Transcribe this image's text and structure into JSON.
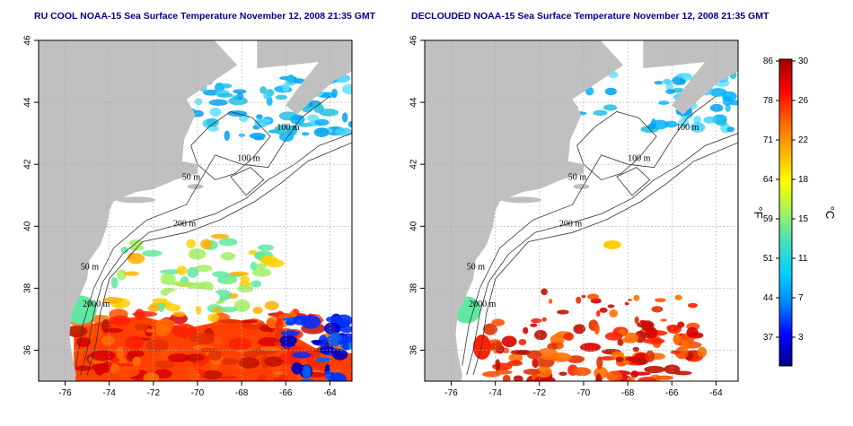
{
  "panels": [
    {
      "title": "RU COOL NOAA-15 Sea Surface Temperature November 12, 2008 21:35 GMT",
      "contour_labels": [
        "100 m",
        "50 m",
        "200 m",
        "50 m",
        "2000 m",
        "100 m"
      ]
    },
    {
      "title": "DECLOUDED NOAA-15 Sea Surface Temperature November 12, 2008 21:35 GMT",
      "contour_labels": [
        "100 m",
        "50 m",
        "100 m",
        "200 m",
        "50 m",
        "2000 m"
      ]
    }
  ],
  "map": {
    "lon_ticks": [
      "-76",
      "-74",
      "-72",
      "-70",
      "-68",
      "-66",
      "-64"
    ],
    "lat_ticks": [
      "36",
      "38",
      "40",
      "42",
      "44",
      "46"
    ],
    "land_color": "#c0c0c0",
    "grid": true
  },
  "colorbar": {
    "fahrenheit_ticks": [
      "86",
      "78",
      "71",
      "64",
      "59",
      "51",
      "44",
      "37"
    ],
    "celsius_ticks": [
      "30",
      "26",
      "22",
      "18",
      "15",
      "11",
      "7",
      "3"
    ],
    "fahrenheit_label": "°F",
    "celsius_label": "°C",
    "colors": [
      "#00008b",
      "#0000ff",
      "#0080ff",
      "#00d0ff",
      "#40e0c0",
      "#a0f060",
      "#ffff00",
      "#ffb000",
      "#ff6000",
      "#ff0000",
      "#a00000"
    ]
  }
}
